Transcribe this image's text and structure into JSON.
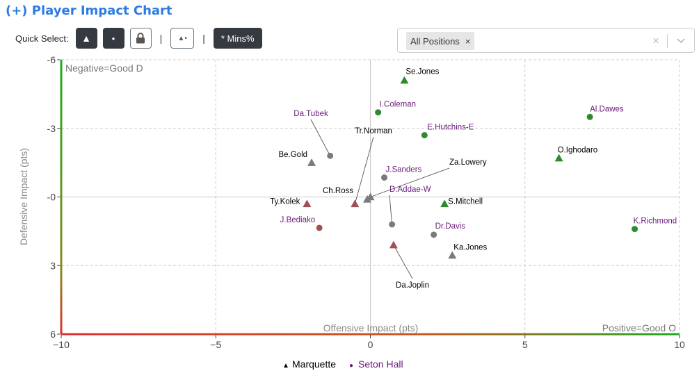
{
  "header": {
    "title": "(+) Player Impact Chart"
  },
  "quick_select": {
    "label": "Quick Select:",
    "triangle_icon": "▲",
    "dot_icon": "●",
    "lock_icon": "lock-icon",
    "separator": "|",
    "tri_dot_icon": "▲•",
    "mins_label": "* Mins%"
  },
  "position_filter": {
    "chip_label": "All Positions",
    "chip_remove": "×",
    "clear": "×"
  },
  "colors": {
    "marquette": "#000000",
    "seton_hall": "#6a1b7a",
    "green_marker": "#2f8a2f",
    "red_marker": "#a05050",
    "neutral_marker": "#7a7a7a",
    "green_axis": "#1faa1f",
    "red_axis": "#e03030",
    "grid": "#cccccc"
  },
  "chart_data": {
    "type": "scatter",
    "xlabel": "Offensive Impact (pts)",
    "ylabel": "Defensive Impact (pts)",
    "xlim": [
      -10,
      10
    ],
    "ylim": [
      -6,
      6
    ],
    "y_inverted": true,
    "grid": true,
    "x_ticks": [
      -10,
      -5,
      0,
      5,
      10
    ],
    "y_ticks": [
      -6,
      -3,
      0,
      3,
      6
    ],
    "x_tick_labels": [
      "−10",
      "−5",
      "0",
      "5",
      "10"
    ],
    "y_tick_labels": [
      "-6",
      "-3",
      "-0",
      "3",
      "6"
    ],
    "annotations": {
      "top_left": "Negative=Good D",
      "bottom_right": "Positive=Good O"
    },
    "legend": {
      "position": "bottom-center",
      "items": [
        {
          "symbol": "▲",
          "label": "Marquette",
          "color": "#000000"
        },
        {
          "symbol": "●",
          "label": "Seton Hall",
          "color": "#6a1b7a"
        }
      ]
    },
    "points": [
      {
        "name": "Se.Jones",
        "team": "Marquette",
        "shape": "triangle",
        "x": 1.1,
        "y": -5.1,
        "color": "green"
      },
      {
        "name": "I.Coleman",
        "team": "Seton Hall",
        "shape": "circle",
        "x": 0.25,
        "y": -3.7,
        "color": "green"
      },
      {
        "name": "E.Hutchins-E",
        "team": "Seton Hall",
        "shape": "circle",
        "x": 1.75,
        "y": -2.7,
        "color": "green"
      },
      {
        "name": "Al.Dawes",
        "team": "Seton Hall",
        "shape": "circle",
        "x": 7.1,
        "y": -3.5,
        "color": "green"
      },
      {
        "name": "O.Ighodaro",
        "team": "Marquette",
        "shape": "triangle",
        "x": 6.1,
        "y": -1.7,
        "color": "green"
      },
      {
        "name": "K.Richmond",
        "team": "Seton Hall",
        "shape": "circle",
        "x": 8.55,
        "y": 1.4,
        "color": "green"
      },
      {
        "name": "Da.Tubek",
        "team": "Seton Hall",
        "shape": "circle",
        "x": -1.3,
        "y": -1.8,
        "color": "neutral"
      },
      {
        "name": "Tr.Norman",
        "team": "Marquette",
        "shape": "triangle",
        "x": -0.5,
        "y": 0.3,
        "color": "red"
      },
      {
        "name": "Be.Gold",
        "team": "Marquette",
        "shape": "triangle",
        "x": -1.9,
        "y": -1.5,
        "color": "neutral"
      },
      {
        "name": "J.Sanders",
        "team": "Seton Hall",
        "shape": "circle",
        "x": 0.45,
        "y": -0.85,
        "color": "neutral"
      },
      {
        "name": "Za.Lowery",
        "team": "Marquette",
        "shape": "triangle",
        "x": 0.0,
        "y": 0.0,
        "color": "neutral"
      },
      {
        "name": "Ch.Ross",
        "team": "Marquette",
        "shape": "triangle",
        "x": -0.1,
        "y": 0.1,
        "color": "neutral"
      },
      {
        "name": "Ty.Kolek",
        "team": "Marquette",
        "shape": "triangle",
        "x": -2.05,
        "y": 0.3,
        "color": "red"
      },
      {
        "name": "D.Addae-W",
        "team": "Seton Hall",
        "shape": "circle",
        "x": 0.7,
        "y": 1.2,
        "color": "neutral"
      },
      {
        "name": "S.Mitchell",
        "team": "Marquette",
        "shape": "triangle",
        "x": 2.4,
        "y": 0.3,
        "color": "green"
      },
      {
        "name": "J.Bediako",
        "team": "Seton Hall",
        "shape": "circle",
        "x": -1.65,
        "y": 1.35,
        "color": "red"
      },
      {
        "name": "Dr.Davis",
        "team": "Seton Hall",
        "shape": "circle",
        "x": 2.05,
        "y": 1.65,
        "color": "neutral"
      },
      {
        "name": "Da.Joplin",
        "team": "Marquette",
        "shape": "triangle",
        "x": 0.75,
        "y": 2.1,
        "color": "red"
      },
      {
        "name": "Ka.Jones",
        "team": "Marquette",
        "shape": "triangle",
        "x": 2.65,
        "y": 2.55,
        "color": "neutral"
      }
    ]
  }
}
